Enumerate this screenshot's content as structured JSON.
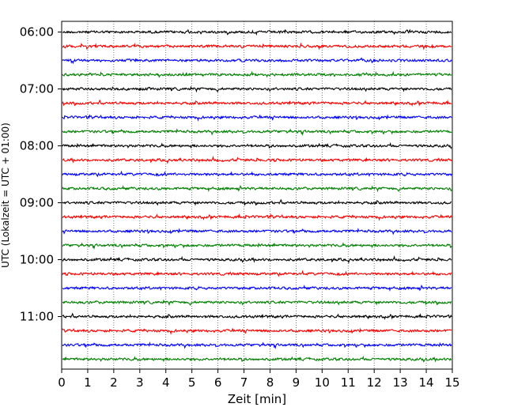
{
  "chart_data": {
    "type": "line",
    "title": "",
    "xlabel": "Zeit  [min]",
    "ylabel": "UTC (Lokalzeit = UTC + 01:00)",
    "xlim": [
      0,
      15
    ],
    "x_ticks": [
      0,
      1,
      2,
      3,
      4,
      5,
      6,
      7,
      8,
      9,
      10,
      11,
      12,
      13,
      14,
      15
    ],
    "x_tick_labels": [
      "0",
      "1",
      "2",
      "3",
      "4",
      "5",
      "6",
      "7",
      "8",
      "9",
      "10",
      "11",
      "12",
      "13",
      "14",
      "15"
    ],
    "y_tick_labels": [
      "06:00",
      "07:00",
      "08:00",
      "09:00",
      "10:00",
      "11:00"
    ],
    "grid": "vertical dotted at each minute",
    "trace_start_times": [
      "06:00",
      "06:15",
      "06:30",
      "06:45",
      "07:00",
      "07:15",
      "07:30",
      "07:45",
      "08:00",
      "08:15",
      "08:30",
      "08:45",
      "09:00",
      "09:15",
      "09:30",
      "09:45",
      "10:00",
      "10:15",
      "10:30",
      "10:45",
      "11:00",
      "11:15",
      "11:30",
      "11:45"
    ],
    "trace_colors": [
      "#000000",
      "#ff0000",
      "#0000ff",
      "#008000"
    ]
  }
}
